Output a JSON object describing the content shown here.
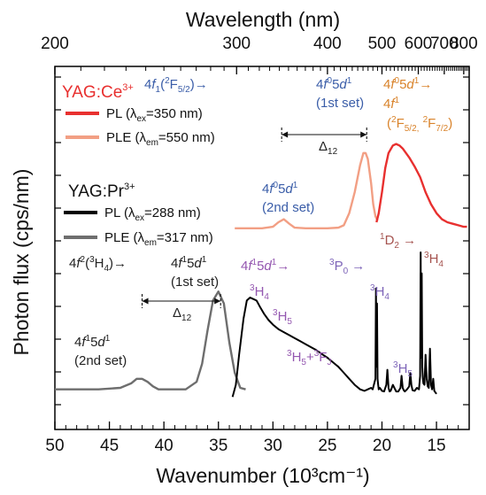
{
  "chart_data": {
    "type": "line",
    "top_axis": {
      "label": "Wavelength (nm)",
      "ticks": [
        200,
        300,
        400,
        500,
        600,
        700,
        800
      ],
      "tick_labels": [
        "200",
        "300",
        "400",
        "500",
        "600",
        "700",
        "800"
      ]
    },
    "bottom_axis": {
      "label": "Wavenumber (10³cm⁻¹)",
      "range": [
        50,
        12
      ],
      "ticks": [
        50,
        45,
        40,
        35,
        30,
        25,
        20,
        15
      ],
      "tick_labels": [
        "50",
        "45",
        "40",
        "35",
        "30",
        "25",
        "20",
        "15"
      ]
    },
    "y_axis": {
      "label": "Photon flux (cps/nm)",
      "tick_labels": [],
      "range": [
        0,
        10
      ]
    },
    "groups": [
      {
        "title_main": "YAG:Ce",
        "title_sup": "3+",
        "color": "#e8302f",
        "legend": [
          {
            "main": "PL (λ",
            "sub": "ex",
            "rest": "=350 nm)",
            "color": "#e8302f"
          },
          {
            "main": "PLE (λ",
            "sub": "em",
            "rest": "=550 nm)",
            "color": "#f29f84"
          }
        ]
      },
      {
        "title_main": "YAG:Pr",
        "title_sup": "3+",
        "color": "#111111",
        "legend": [
          {
            "main": "PL (λ",
            "sub": "ex",
            "rest": "=288 nm)",
            "color": "#000000"
          },
          {
            "main": "PLE (λ",
            "sub": "em",
            "rest": "=317 nm)",
            "color": "#6e6e6e"
          }
        ]
      }
    ],
    "series": [
      {
        "name": "YAG:Ce3+ PLE (λem=550 nm)",
        "color": "#f29f84",
        "x": [
          33.5,
          32,
          31,
          30,
          29.5,
          29,
          28.5,
          28,
          27,
          26,
          25,
          24,
          23.5,
          23,
          22.5,
          22,
          21.7,
          21.5,
          21.3,
          21,
          20.8,
          20.6,
          20.4
        ],
        "y": [
          5.8,
          5.8,
          5.8,
          5.85,
          6.0,
          6.1,
          5.95,
          5.82,
          5.8,
          5.8,
          5.8,
          5.82,
          5.9,
          6.3,
          7.0,
          7.9,
          8.3,
          8.3,
          8.1,
          7.3,
          6.6,
          6.2,
          6.05
        ]
      },
      {
        "name": "YAG:Ce3+ PL (λex=350 nm)",
        "color": "#e8302f",
        "x": [
          20.5,
          20.3,
          20,
          19.7,
          19.4,
          19,
          18.7,
          18.4,
          18.1,
          17.8,
          17.5,
          17,
          16.5,
          16,
          15.5,
          15,
          14.5,
          14,
          13.5,
          13,
          12.5,
          12.2
        ],
        "y": [
          6.0,
          6.3,
          7.0,
          7.8,
          8.3,
          8.55,
          8.6,
          8.55,
          8.45,
          8.3,
          8.15,
          7.85,
          7.5,
          7.0,
          6.6,
          6.3,
          6.1,
          6.0,
          5.95,
          5.9,
          5.85,
          5.85
        ]
      },
      {
        "name": "YAG:Pr3+ PLE (λem=317 nm)",
        "color": "#6e6e6e",
        "x": [
          50,
          48,
          46,
          44,
          43,
          42.5,
          42,
          41.5,
          41,
          40.5,
          40,
          39,
          38,
          37,
          36.5,
          36,
          35.5,
          35,
          34.5,
          34,
          33.5,
          33,
          32.5
        ],
        "y": [
          0.45,
          0.45,
          0.45,
          0.5,
          0.65,
          0.8,
          0.8,
          0.7,
          0.55,
          0.45,
          0.45,
          0.45,
          0.45,
          0.7,
          1.3,
          2.4,
          3.4,
          3.7,
          3.3,
          2.0,
          1.0,
          0.5,
          0.45
        ]
      },
      {
        "name": "YAG:Pr3+ PL (λex=288 nm)",
        "color": "#000000",
        "x": [
          33.7,
          33.4,
          33.1,
          32.7,
          32.4,
          32.1,
          31.8,
          31.5,
          31.2,
          30.8,
          30.4,
          30,
          29.5,
          29,
          28.5,
          28,
          27.5,
          27,
          26.5,
          26,
          25.5,
          25,
          24.5,
          24,
          23.5,
          23,
          22.5,
          22,
          21.6,
          21.3,
          21,
          20.85,
          20.6,
          20.55,
          20.5,
          20.45,
          20.4,
          20.35,
          20.3,
          20.2,
          20,
          19.8,
          19.6,
          19.5,
          19.4,
          19.3,
          19.2,
          19,
          18.7,
          18.5,
          18.3,
          18.2,
          18.1,
          18,
          17.9,
          17.7,
          17.5,
          17.4,
          17.3,
          17.2,
          17,
          16.8,
          16.6,
          16.5,
          16.45,
          16.4,
          16.35,
          16.3,
          16.25,
          16.2,
          16.1,
          16,
          15.9,
          15.8,
          15.7,
          15.6,
          15.5,
          15.4,
          15.3,
          15.2,
          15.1,
          15
        ],
        "y": [
          0.2,
          0.6,
          1.6,
          2.8,
          3.4,
          3.5,
          3.45,
          3.4,
          3.2,
          2.95,
          2.75,
          2.6,
          2.45,
          2.35,
          2.25,
          2.15,
          2.05,
          1.95,
          1.85,
          1.75,
          1.62,
          1.5,
          1.35,
          1.2,
          1.0,
          0.8,
          0.6,
          0.45,
          0.4,
          0.45,
          0.5,
          0.45,
          0.8,
          3.8,
          1.2,
          3.3,
          0.8,
          0.6,
          0.45,
          0.5,
          0.4,
          0.38,
          0.6,
          1.1,
          0.5,
          0.38,
          0.4,
          0.6,
          0.38,
          0.38,
          0.5,
          0.9,
          0.5,
          0.42,
          0.38,
          0.45,
          0.55,
          1.0,
          0.6,
          0.42,
          0.4,
          0.5,
          0.45,
          0.9,
          5.0,
          1.5,
          4.3,
          1.2,
          0.8,
          0.65,
          0.6,
          1.6,
          0.8,
          0.55,
          0.5,
          1.8,
          0.6,
          0.45,
          0.8,
          0.4,
          0.35,
          0.3
        ]
      }
    ],
    "annotations": [
      {
        "id": "ce-4f1",
        "color": "#3a5da8",
        "parts": [
          {
            "t": "4"
          },
          {
            "t": "f",
            "i": true
          },
          {
            "t": "1",
            "s": "sub"
          },
          {
            "t": "("
          },
          {
            "t": "2",
            "s": "sup"
          },
          {
            "t": "F"
          },
          {
            "t": "5/2",
            "s": "sub"
          },
          {
            "t": ")→"
          }
        ]
      },
      {
        "id": "ce-1st-a",
        "color": "#3a5da8",
        "parts": [
          {
            "t": "4"
          },
          {
            "t": "f",
            "i": true
          },
          {
            "t": "0",
            "s": "sup"
          },
          {
            "t": "5"
          },
          {
            "t": "d",
            "i": true
          },
          {
            "t": "1",
            "s": "sup"
          }
        ]
      },
      {
        "id": "ce-1st-b",
        "color": "#3a5da8",
        "parts": [
          {
            "t": "(1st set)"
          }
        ]
      },
      {
        "id": "ce-2nd-a",
        "color": "#3a5da8",
        "parts": [
          {
            "t": "4"
          },
          {
            "t": "f",
            "i": true
          },
          {
            "t": "0",
            "s": "sup"
          },
          {
            "t": "5"
          },
          {
            "t": "d",
            "i": true
          },
          {
            "t": "1",
            "s": "sup"
          }
        ]
      },
      {
        "id": "ce-2nd-b",
        "color": "#3a5da8",
        "parts": [
          {
            "t": "(2nd set)"
          }
        ]
      },
      {
        "id": "ce-em-a",
        "color": "#d9832b",
        "parts": [
          {
            "t": "4"
          },
          {
            "t": "f",
            "i": true
          },
          {
            "t": "0",
            "s": "sup"
          },
          {
            "t": "5"
          },
          {
            "t": "d",
            "i": true
          },
          {
            "t": "1",
            "s": "sup"
          },
          {
            "t": "→"
          }
        ]
      },
      {
        "id": "ce-em-b",
        "color": "#d9832b",
        "parts": [
          {
            "t": "4"
          },
          {
            "t": "f",
            "i": true
          },
          {
            "t": "1",
            "s": "sup"
          }
        ]
      },
      {
        "id": "ce-em-c",
        "color": "#d9832b",
        "parts": [
          {
            "t": "("
          },
          {
            "t": "2",
            "s": "sup"
          },
          {
            "t": "F"
          },
          {
            "t": "5/2,",
            "s": "sub"
          },
          {
            "t": " "
          },
          {
            "t": "2",
            "s": "sup"
          },
          {
            "t": "F"
          },
          {
            "t": "7/2",
            "s": "sub"
          },
          {
            "t": ")"
          }
        ]
      },
      {
        "id": "ce-delta",
        "color": "#222222",
        "parts": [
          {
            "t": "Δ"
          },
          {
            "t": "12",
            "s": "sub"
          }
        ]
      },
      {
        "id": "pr-gs",
        "color": "#222222",
        "parts": [
          {
            "t": "4"
          },
          {
            "t": "f",
            "i": true
          },
          {
            "t": "2",
            "s": "sup"
          },
          {
            "t": "("
          },
          {
            "t": "3",
            "s": "sup"
          },
          {
            "t": "H"
          },
          {
            "t": "4",
            "s": "sub"
          },
          {
            "t": ")→"
          }
        ]
      },
      {
        "id": "pr-1st-a",
        "color": "#222222",
        "parts": [
          {
            "t": "4"
          },
          {
            "t": "f",
            "i": true
          },
          {
            "t": "1",
            "s": "sup"
          },
          {
            "t": "5"
          },
          {
            "t": "d",
            "i": true
          },
          {
            "t": "1",
            "s": "sup"
          }
        ]
      },
      {
        "id": "pr-1st-b",
        "color": "#222222",
        "parts": [
          {
            "t": "(1st set)"
          }
        ]
      },
      {
        "id": "pr-2nd-a",
        "color": "#222222",
        "parts": [
          {
            "t": "4"
          },
          {
            "t": "f",
            "i": true
          },
          {
            "t": "1",
            "s": "sup"
          },
          {
            "t": "5"
          },
          {
            "t": "d",
            "i": true
          },
          {
            "t": "1",
            "s": "sup"
          }
        ]
      },
      {
        "id": "pr-2nd-b",
        "color": "#222222",
        "parts": [
          {
            "t": "(2nd set)"
          }
        ]
      },
      {
        "id": "pr-delta",
        "color": "#222222",
        "parts": [
          {
            "t": "Δ"
          },
          {
            "t": "12",
            "s": "sub"
          }
        ]
      },
      {
        "id": "pr-em",
        "color": "#9457b0",
        "parts": [
          {
            "t": "4"
          },
          {
            "t": "f",
            "i": true
          },
          {
            "t": "1",
            "s": "sup"
          },
          {
            "t": "5"
          },
          {
            "t": "d",
            "i": true
          },
          {
            "t": "1",
            "s": "sup"
          },
          {
            "t": "→"
          }
        ]
      },
      {
        "id": "pr-3h4",
        "color": "#9457b0",
        "parts": [
          {
            "t": "3",
            "s": "sup"
          },
          {
            "t": "H"
          },
          {
            "t": "4",
            "s": "sub"
          }
        ]
      },
      {
        "id": "pr-3h5",
        "color": "#9457b0",
        "parts": [
          {
            "t": "3",
            "s": "sup"
          },
          {
            "t": "H"
          },
          {
            "t": "5",
            "s": "sub"
          }
        ]
      },
      {
        "id": "pr-3h5fj",
        "color": "#9457b0",
        "parts": [
          {
            "t": "3",
            "s": "sup"
          },
          {
            "t": "H"
          },
          {
            "t": "5",
            "s": "sub"
          },
          {
            "t": "+"
          },
          {
            "t": "3",
            "s": "sup"
          },
          {
            "t": "F"
          },
          {
            "t": "J",
            "s": "sub"
          }
        ]
      },
      {
        "id": "pr-3p0",
        "color": "#7d64b8",
        "parts": [
          {
            "t": "3",
            "s": "sup"
          },
          {
            "t": "P"
          },
          {
            "t": "0",
            "s": "sub"
          },
          {
            "t": " →"
          }
        ]
      },
      {
        "id": "pr-p-3h4",
        "color": "#7d64b8",
        "parts": [
          {
            "t": "3",
            "s": "sup"
          },
          {
            "t": "H"
          },
          {
            "t": "4",
            "s": "sub"
          }
        ]
      },
      {
        "id": "pr-p-3h5",
        "color": "#7d64b8",
        "parts": [
          {
            "t": "3",
            "s": "sup"
          },
          {
            "t": "H"
          },
          {
            "t": "5",
            "s": "sub"
          }
        ]
      },
      {
        "id": "pr-1d2",
        "color": "#a5534f",
        "parts": [
          {
            "t": "1",
            "s": "sup"
          },
          {
            "t": "D"
          },
          {
            "t": "2",
            "s": "sub"
          },
          {
            "t": " →"
          }
        ]
      },
      {
        "id": "pr-d-3h4",
        "color": "#a5534f",
        "parts": [
          {
            "t": "3",
            "s": "sup"
          },
          {
            "t": "H"
          },
          {
            "t": "4",
            "s": "sub"
          }
        ]
      }
    ]
  }
}
